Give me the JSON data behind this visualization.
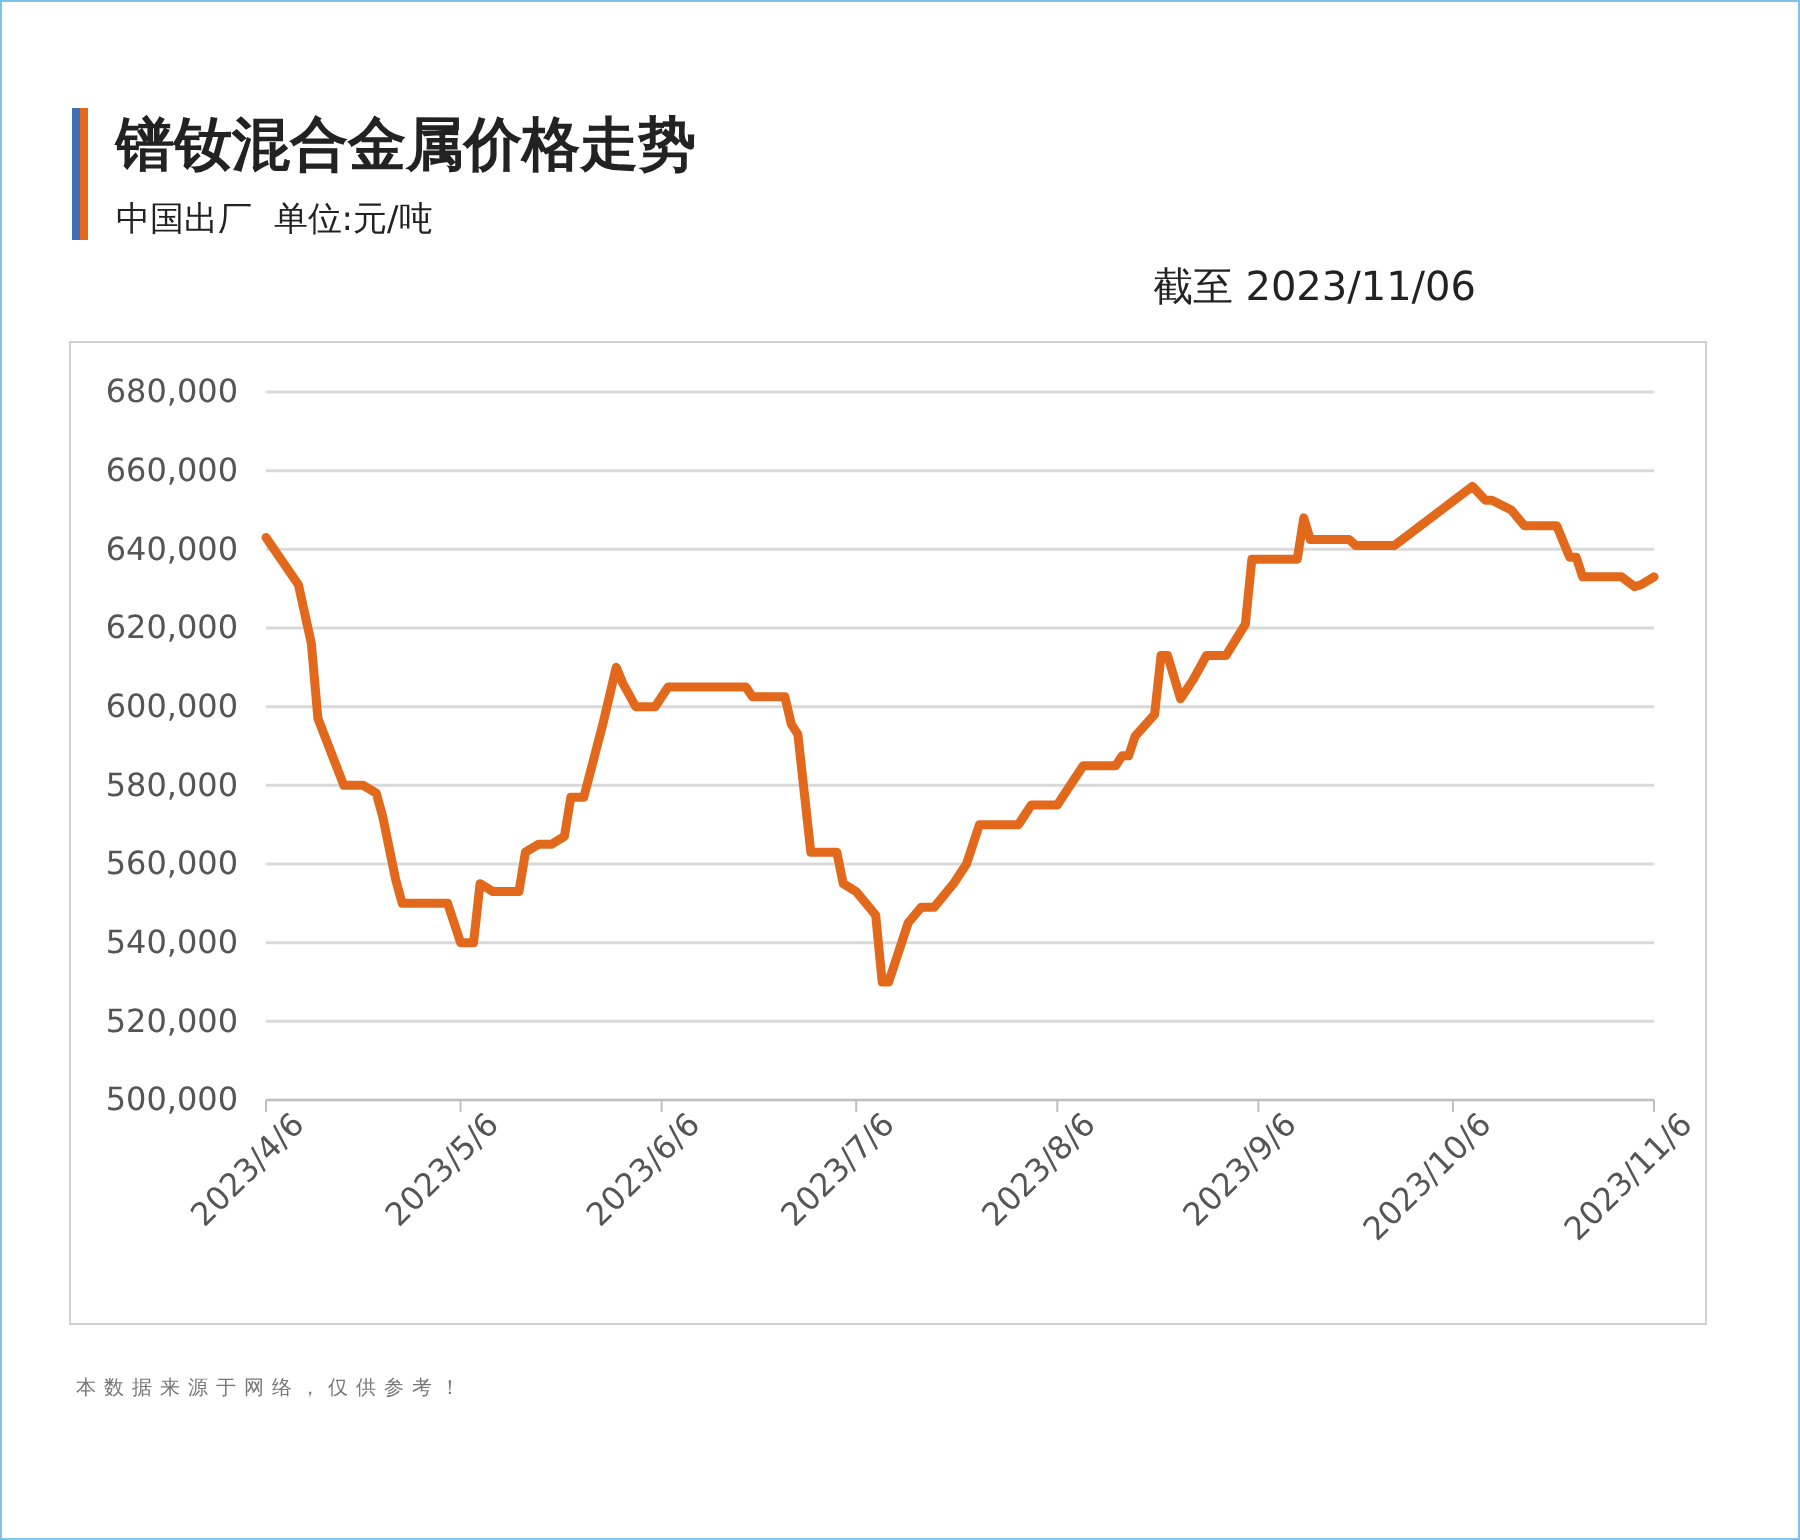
{
  "chart_data": {
    "type": "line",
    "title": "镨钕混合金属价格走势",
    "subtitle": "中国出厂  单位:元/吨",
    "annotations": [
      "截至 2023/11/06",
      "本数据来源于网络，仅供参考！"
    ],
    "x": [
      "2023-04-06",
      "2023-04-11",
      "2023-04-13",
      "2023-04-14",
      "2023-04-18",
      "2023-04-21",
      "2023-04-23",
      "2023-04-24",
      "2023-04-26",
      "2023-04-27",
      "2023-05-04",
      "2023-05-06",
      "2023-05-08",
      "2023-05-09",
      "2023-05-11",
      "2023-05-15",
      "2023-05-16",
      "2023-05-18",
      "2023-05-20",
      "2023-05-22",
      "2023-05-23",
      "2023-05-25",
      "2023-05-28",
      "2023-05-30",
      "2023-05-31",
      "2023-06-02",
      "2023-06-05",
      "2023-06-07",
      "2023-06-19",
      "2023-06-20",
      "2023-06-25",
      "2023-06-26",
      "2023-06-27",
      "2023-06-29",
      "2023-07-03",
      "2023-07-04",
      "2023-07-06",
      "2023-07-09",
      "2023-07-10",
      "2023-07-11",
      "2023-07-12",
      "2023-07-14",
      "2023-07-16",
      "2023-07-18",
      "2023-07-21",
      "2023-07-23",
      "2023-07-25",
      "2023-07-31",
      "2023-08-02",
      "2023-08-06",
      "2023-08-08",
      "2023-08-10",
      "2023-08-15",
      "2023-08-16",
      "2023-08-17",
      "2023-08-18",
      "2023-08-21",
      "2023-08-22",
      "2023-08-23",
      "2023-08-25",
      "2023-08-27",
      "2023-08-29",
      "2023-09-01",
      "2023-09-04",
      "2023-09-05",
      "2023-09-12",
      "2023-09-13",
      "2023-09-14",
      "2023-09-20",
      "2023-09-21",
      "2023-09-27",
      "2023-10-09",
      "2023-10-11",
      "2023-10-12",
      "2023-10-15",
      "2023-10-17",
      "2023-10-22",
      "2023-10-24",
      "2023-10-25",
      "2023-10-26",
      "2023-11-01",
      "2023-11-03",
      "2023-11-04",
      "2023-11-06"
    ],
    "series": [
      {
        "color": "#e2691c",
        "values": [
          643000,
          631000,
          616000,
          597000,
          580000,
          580000,
          578000,
          572000,
          556000,
          550000,
          550000,
          540000,
          540000,
          555000,
          553000,
          553000,
          563000,
          565000,
          565000,
          567000,
          577000,
          577000,
          596000,
          610000,
          606000,
          600000,
          600000,
          605000,
          605000,
          602500,
          602500,
          595500,
          593000,
          563000,
          563000,
          555000,
          553000,
          547000,
          530000,
          530000,
          535000,
          545000,
          549000,
          549000,
          555000,
          560000,
          570000,
          570000,
          575000,
          575000,
          580000,
          585000,
          585000,
          587500,
          587500,
          592500,
          598000,
          613000,
          613000,
          602000,
          607000,
          613000,
          613000,
          621000,
          637500,
          637500,
          648000,
          642500,
          642500,
          641000,
          641000,
          656000,
          652500,
          652500,
          650000,
          646000,
          646000,
          638000,
          638000,
          633000,
          633000,
          630500,
          631000,
          633000
        ]
      }
    ],
    "xlim": [
      "2023-04-06",
      "2023-11-06"
    ],
    "xticks": [
      {
        "value": "2023-04-06",
        "label": "2023/4/6"
      },
      {
        "value": "2023-05-06",
        "label": "2023/5/6"
      },
      {
        "value": "2023-06-06",
        "label": "2023/6/6"
      },
      {
        "value": "2023-07-06",
        "label": "2023/7/6"
      },
      {
        "value": "2023-08-06",
        "label": "2023/8/6"
      },
      {
        "value": "2023-09-06",
        "label": "2023/9/6"
      },
      {
        "value": "2023-10-06",
        "label": "2023/10/6"
      },
      {
        "value": "2023-11-06",
        "label": "2023/11/6"
      }
    ],
    "ylim": [
      500000,
      680000
    ],
    "yticks": [
      {
        "value": 500000,
        "label": "500,000"
      },
      {
        "value": 520000,
        "label": "520,000"
      },
      {
        "value": 540000,
        "label": "540,000"
      },
      {
        "value": 560000,
        "label": "560,000"
      },
      {
        "value": 580000,
        "label": "580,000"
      },
      {
        "value": 600000,
        "label": "600,000"
      },
      {
        "value": 620000,
        "label": "620,000"
      },
      {
        "value": 640000,
        "label": "640,000"
      },
      {
        "value": 660000,
        "label": "660,000"
      },
      {
        "value": 680000,
        "label": "680,000"
      }
    ],
    "grid": "y",
    "marker": "none",
    "line_style": "solid"
  }
}
